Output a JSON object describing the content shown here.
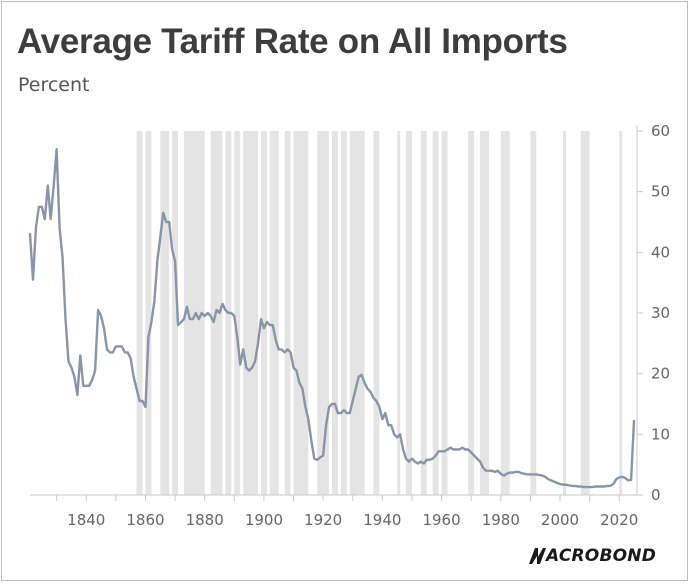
{
  "title": "Average Tariff Rate on All Imports",
  "subtitle": "Percent",
  "brand": {
    "wordmark": "ACROBOND",
    "logo_icon": "macrobond-m-icon"
  },
  "colors": {
    "line": "#8894a8",
    "band": "#e4e4e4",
    "axis": "#c8c8c8",
    "text": "#666666"
  },
  "chart_data": {
    "type": "line",
    "title": "Average Tariff Rate on All Imports",
    "ylabel": "Percent",
    "xlabel": "",
    "xlim": [
      1821,
      2026
    ],
    "ylim": [
      0,
      60
    ],
    "x_ticks": [
      1840,
      1860,
      1880,
      1900,
      1920,
      1940,
      1960,
      1980,
      2000,
      2020
    ],
    "y_ticks": [
      0,
      10,
      20,
      30,
      40,
      50,
      60
    ],
    "y_axis_side": "right",
    "grid": false,
    "legend": "none",
    "shaded_periods": [
      [
        1857,
        1858
      ],
      [
        1860,
        1861
      ],
      [
        1865,
        1867
      ],
      [
        1869,
        1870
      ],
      [
        1873,
        1879
      ],
      [
        1882,
        1885
      ],
      [
        1887,
        1888
      ],
      [
        1890,
        1891
      ],
      [
        1893,
        1894
      ],
      [
        1895,
        1897
      ],
      [
        1899,
        1900
      ],
      [
        1902,
        1904
      ],
      [
        1907,
        1908
      ],
      [
        1910,
        1912
      ],
      [
        1913,
        1914
      ],
      [
        1918,
        1919
      ],
      [
        1920,
        1921
      ],
      [
        1923,
        1924
      ],
      [
        1926,
        1927
      ],
      [
        1929,
        1933
      ],
      [
        1937,
        1938
      ],
      [
        1945,
        1945
      ],
      [
        1948,
        1949
      ],
      [
        1953,
        1954
      ],
      [
        1957,
        1958
      ],
      [
        1960,
        1961
      ],
      [
        1969,
        1970
      ],
      [
        1973,
        1975
      ],
      [
        1980,
        1980
      ],
      [
        1981,
        1982
      ],
      [
        1990,
        1991
      ],
      [
        2001,
        2001
      ],
      [
        2007,
        2009
      ],
      [
        2020,
        2020
      ]
    ],
    "series": [
      {
        "values": [
          [
            1821,
            43
          ],
          [
            1822,
            35.5
          ],
          [
            1823,
            44
          ],
          [
            1824,
            47.5
          ],
          [
            1825,
            47.5
          ],
          [
            1826,
            45.5
          ],
          [
            1827,
            51
          ],
          [
            1828,
            45.5
          ],
          [
            1829,
            51
          ],
          [
            1830,
            57
          ],
          [
            1831,
            44
          ],
          [
            1832,
            39
          ],
          [
            1833,
            29
          ],
          [
            1834,
            22
          ],
          [
            1835,
            21
          ],
          [
            1836,
            19.5
          ],
          [
            1837,
            16.5
          ],
          [
            1838,
            23
          ],
          [
            1839,
            18
          ],
          [
            1840,
            18
          ],
          [
            1841,
            18
          ],
          [
            1842,
            19
          ],
          [
            1843,
            20.5
          ],
          [
            1844,
            30.5
          ],
          [
            1845,
            29.5
          ],
          [
            1846,
            27.5
          ],
          [
            1847,
            24
          ],
          [
            1848,
            23.5
          ],
          [
            1849,
            23.5
          ],
          [
            1850,
            24.5
          ],
          [
            1851,
            24.5
          ],
          [
            1852,
            24.5
          ],
          [
            1853,
            23.5
          ],
          [
            1854,
            23.5
          ],
          [
            1855,
            22.5
          ],
          [
            1856,
            19.5
          ],
          [
            1857,
            17.5
          ],
          [
            1858,
            15.5
          ],
          [
            1859,
            15.5
          ],
          [
            1860,
            14.5
          ],
          [
            1861,
            26
          ],
          [
            1862,
            28.5
          ],
          [
            1863,
            32
          ],
          [
            1864,
            38.5
          ],
          [
            1865,
            42.5
          ],
          [
            1866,
            46.5
          ],
          [
            1867,
            45
          ],
          [
            1868,
            45
          ],
          [
            1869,
            40.5
          ],
          [
            1870,
            38.5
          ],
          [
            1871,
            28
          ],
          [
            1872,
            28.5
          ],
          [
            1873,
            29
          ],
          [
            1874,
            31
          ],
          [
            1875,
            29
          ],
          [
            1876,
            29
          ],
          [
            1877,
            30
          ],
          [
            1878,
            29
          ],
          [
            1879,
            30
          ],
          [
            1880,
            29.5
          ],
          [
            1881,
            30
          ],
          [
            1882,
            29.5
          ],
          [
            1883,
            28.5
          ],
          [
            1884,
            30.5
          ],
          [
            1885,
            30
          ],
          [
            1886,
            31.5
          ],
          [
            1887,
            30.5
          ],
          [
            1888,
            30
          ],
          [
            1889,
            30
          ],
          [
            1890,
            29.5
          ],
          [
            1891,
            26
          ],
          [
            1892,
            21.5
          ],
          [
            1893,
            24
          ],
          [
            1894,
            21
          ],
          [
            1895,
            20.5
          ],
          [
            1896,
            21
          ],
          [
            1897,
            22
          ],
          [
            1898,
            25
          ],
          [
            1899,
            29
          ],
          [
            1900,
            27.5
          ],
          [
            1901,
            28.5
          ],
          [
            1902,
            28
          ],
          [
            1903,
            28
          ],
          [
            1904,
            25.5
          ],
          [
            1905,
            24
          ],
          [
            1906,
            24
          ],
          [
            1907,
            23.5
          ],
          [
            1908,
            24
          ],
          [
            1909,
            23.5
          ],
          [
            1910,
            21
          ],
          [
            1911,
            20.5
          ],
          [
            1912,
            18.5
          ],
          [
            1913,
            17.5
          ],
          [
            1914,
            14.5
          ],
          [
            1915,
            12.5
          ],
          [
            1916,
            9
          ],
          [
            1917,
            6
          ],
          [
            1918,
            5.8
          ],
          [
            1919,
            6.2
          ],
          [
            1920,
            6.5
          ],
          [
            1921,
            11.5
          ],
          [
            1922,
            14.5
          ],
          [
            1923,
            15
          ],
          [
            1924,
            15
          ],
          [
            1925,
            13.5
          ],
          [
            1926,
            13.5
          ],
          [
            1927,
            14
          ],
          [
            1928,
            13.5
          ],
          [
            1929,
            13.5
          ],
          [
            1930,
            15.5
          ],
          [
            1931,
            17.5
          ],
          [
            1932,
            19.5
          ],
          [
            1933,
            19.8
          ],
          [
            1934,
            18.5
          ],
          [
            1935,
            17.5
          ],
          [
            1936,
            17
          ],
          [
            1937,
            16
          ],
          [
            1938,
            15.5
          ],
          [
            1939,
            14.5
          ],
          [
            1940,
            12.5
          ],
          [
            1941,
            13.5
          ],
          [
            1942,
            11.5
          ],
          [
            1943,
            11.5
          ],
          [
            1944,
            10
          ],
          [
            1945,
            9.5
          ],
          [
            1946,
            10
          ],
          [
            1947,
            7.5
          ],
          [
            1948,
            6
          ],
          [
            1949,
            5.5
          ],
          [
            1950,
            6
          ],
          [
            1951,
            5.5
          ],
          [
            1952,
            5.2
          ],
          [
            1953,
            5.5
          ],
          [
            1954,
            5.2
          ],
          [
            1955,
            5.8
          ],
          [
            1956,
            5.8
          ],
          [
            1957,
            6
          ],
          [
            1958,
            6.5
          ],
          [
            1959,
            7.2
          ],
          [
            1960,
            7.2
          ],
          [
            1961,
            7.2
          ],
          [
            1962,
            7.5
          ],
          [
            1963,
            7.8
          ],
          [
            1964,
            7.5
          ],
          [
            1965,
            7.5
          ],
          [
            1966,
            7.5
          ],
          [
            1967,
            7.8
          ],
          [
            1968,
            7.5
          ],
          [
            1969,
            7.5
          ],
          [
            1970,
            7
          ],
          [
            1971,
            6.5
          ],
          [
            1972,
            6
          ],
          [
            1973,
            5.5
          ],
          [
            1974,
            4.5
          ],
          [
            1975,
            4
          ],
          [
            1976,
            4
          ],
          [
            1977,
            4
          ],
          [
            1978,
            3.8
          ],
          [
            1979,
            4
          ],
          [
            1980,
            3.5
          ],
          [
            1981,
            3.2
          ],
          [
            1982,
            3.5
          ],
          [
            1983,
            3.7
          ],
          [
            1984,
            3.7
          ],
          [
            1985,
            3.8
          ],
          [
            1986,
            3.8
          ],
          [
            1987,
            3.6
          ],
          [
            1988,
            3.5
          ],
          [
            1989,
            3.4
          ],
          [
            1990,
            3.4
          ],
          [
            1991,
            3.4
          ],
          [
            1992,
            3.4
          ],
          [
            1993,
            3.3
          ],
          [
            1994,
            3.2
          ],
          [
            1995,
            3
          ],
          [
            1996,
            2.6
          ],
          [
            1997,
            2.4
          ],
          [
            1998,
            2.2
          ],
          [
            1999,
            2
          ],
          [
            2000,
            1.8
          ],
          [
            2001,
            1.7
          ],
          [
            2002,
            1.7
          ],
          [
            2003,
            1.6
          ],
          [
            2004,
            1.5
          ],
          [
            2005,
            1.5
          ],
          [
            2006,
            1.4
          ],
          [
            2007,
            1.4
          ],
          [
            2008,
            1.3
          ],
          [
            2009,
            1.3
          ],
          [
            2010,
            1.3
          ],
          [
            2011,
            1.3
          ],
          [
            2012,
            1.4
          ],
          [
            2013,
            1.4
          ],
          [
            2014,
            1.4
          ],
          [
            2015,
            1.4
          ],
          [
            2016,
            1.5
          ],
          [
            2017,
            1.5
          ],
          [
            2018,
            1.8
          ],
          [
            2019,
            2.6
          ],
          [
            2020,
            2.9
          ],
          [
            2021,
            3
          ],
          [
            2022,
            2.8
          ],
          [
            2023,
            2.4
          ],
          [
            2024,
            2.5
          ],
          [
            2025,
            12.2
          ]
        ]
      }
    ]
  }
}
